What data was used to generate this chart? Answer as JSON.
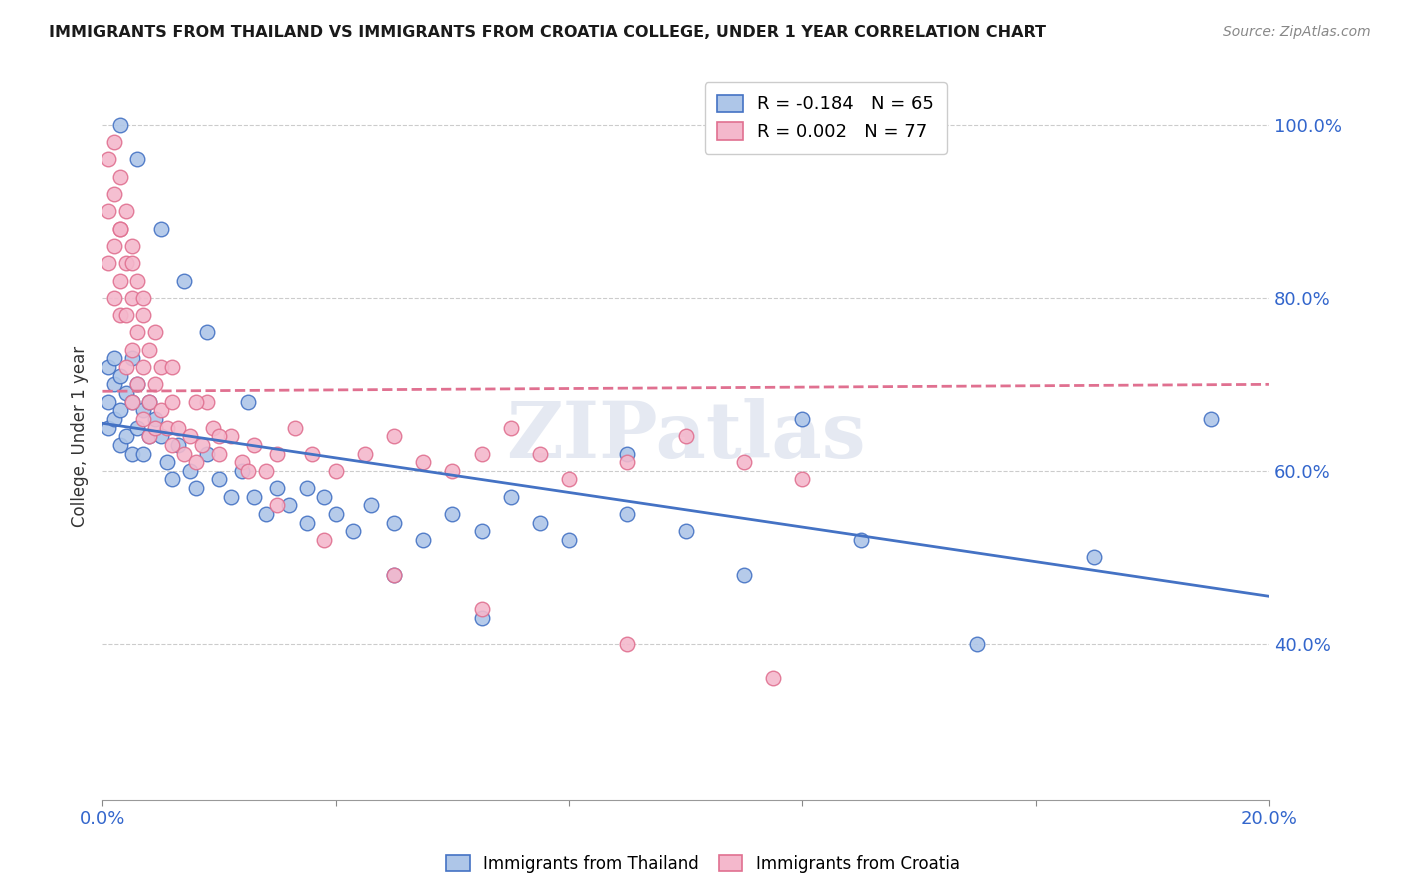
{
  "title": "IMMIGRANTS FROM THAILAND VS IMMIGRANTS FROM CROATIA COLLEGE, UNDER 1 YEAR CORRELATION CHART",
  "source": "Source: ZipAtlas.com",
  "ylabel": "College, Under 1 year",
  "xlim": [
    0.0,
    0.2
  ],
  "ylim": [
    0.22,
    1.06
  ],
  "x_ticks": [
    0.0,
    0.04,
    0.08,
    0.12,
    0.16,
    0.2
  ],
  "x_tick_labels": [
    "0.0%",
    "",
    "",
    "",
    "",
    "20.0%"
  ],
  "y_ticks": [
    0.4,
    0.6,
    0.8,
    1.0
  ],
  "y_tick_labels": [
    "40.0%",
    "60.0%",
    "80.0%",
    "100.0%"
  ],
  "legend_entry_1": "R = -0.184   N = 65",
  "legend_entry_2": "R = 0.002   N = 77",
  "thailand_color": "#aec6e8",
  "thailand_edge_color": "#4472c4",
  "croatia_color": "#f4b8cc",
  "croatia_edge_color": "#e07090",
  "thailand_line_color": "#4472c4",
  "croatia_line_color": "#e07090",
  "watermark": "ZIPatlas",
  "bottom_legend_1": "Immigrants from Thailand",
  "bottom_legend_2": "Immigrants from Croatia",
  "thailand_x": [
    0.001,
    0.001,
    0.001,
    0.002,
    0.002,
    0.002,
    0.003,
    0.003,
    0.003,
    0.004,
    0.004,
    0.005,
    0.005,
    0.005,
    0.006,
    0.006,
    0.007,
    0.007,
    0.008,
    0.008,
    0.009,
    0.01,
    0.011,
    0.012,
    0.013,
    0.015,
    0.016,
    0.018,
    0.02,
    0.022,
    0.024,
    0.026,
    0.028,
    0.03,
    0.032,
    0.035,
    0.038,
    0.04,
    0.043,
    0.046,
    0.05,
    0.055,
    0.06,
    0.065,
    0.07,
    0.075,
    0.08,
    0.09,
    0.1,
    0.11,
    0.12,
    0.13,
    0.15,
    0.17,
    0.19,
    0.003,
    0.006,
    0.01,
    0.014,
    0.018,
    0.025,
    0.035,
    0.05,
    0.065,
    0.09
  ],
  "thailand_y": [
    0.72,
    0.68,
    0.65,
    0.73,
    0.7,
    0.66,
    0.71,
    0.67,
    0.63,
    0.69,
    0.64,
    0.73,
    0.68,
    0.62,
    0.7,
    0.65,
    0.67,
    0.62,
    0.68,
    0.64,
    0.66,
    0.64,
    0.61,
    0.59,
    0.63,
    0.6,
    0.58,
    0.62,
    0.59,
    0.57,
    0.6,
    0.57,
    0.55,
    0.58,
    0.56,
    0.54,
    0.57,
    0.55,
    0.53,
    0.56,
    0.54,
    0.52,
    0.55,
    0.53,
    0.57,
    0.54,
    0.52,
    0.55,
    0.53,
    0.48,
    0.66,
    0.52,
    0.4,
    0.5,
    0.66,
    1.0,
    0.96,
    0.88,
    0.82,
    0.76,
    0.68,
    0.58,
    0.48,
    0.43,
    0.62
  ],
  "croatia_x": [
    0.001,
    0.001,
    0.001,
    0.002,
    0.002,
    0.002,
    0.002,
    0.003,
    0.003,
    0.003,
    0.003,
    0.004,
    0.004,
    0.004,
    0.004,
    0.005,
    0.005,
    0.005,
    0.005,
    0.006,
    0.006,
    0.006,
    0.007,
    0.007,
    0.007,
    0.008,
    0.008,
    0.008,
    0.009,
    0.009,
    0.01,
    0.01,
    0.011,
    0.012,
    0.012,
    0.013,
    0.014,
    0.015,
    0.016,
    0.017,
    0.018,
    0.019,
    0.02,
    0.022,
    0.024,
    0.026,
    0.028,
    0.03,
    0.033,
    0.036,
    0.04,
    0.045,
    0.05,
    0.055,
    0.06,
    0.065,
    0.07,
    0.075,
    0.08,
    0.09,
    0.1,
    0.11,
    0.12,
    0.003,
    0.005,
    0.007,
    0.009,
    0.012,
    0.016,
    0.02,
    0.025,
    0.03,
    0.038,
    0.05,
    0.065,
    0.09,
    0.115
  ],
  "croatia_y": [
    0.96,
    0.9,
    0.84,
    0.98,
    0.92,
    0.86,
    0.8,
    0.94,
    0.88,
    0.82,
    0.78,
    0.9,
    0.84,
    0.78,
    0.72,
    0.86,
    0.8,
    0.74,
    0.68,
    0.82,
    0.76,
    0.7,
    0.78,
    0.72,
    0.66,
    0.74,
    0.68,
    0.64,
    0.7,
    0.65,
    0.72,
    0.67,
    0.65,
    0.68,
    0.63,
    0.65,
    0.62,
    0.64,
    0.61,
    0.63,
    0.68,
    0.65,
    0.62,
    0.64,
    0.61,
    0.63,
    0.6,
    0.62,
    0.65,
    0.62,
    0.6,
    0.62,
    0.64,
    0.61,
    0.6,
    0.62,
    0.65,
    0.62,
    0.59,
    0.61,
    0.64,
    0.61,
    0.59,
    0.88,
    0.84,
    0.8,
    0.76,
    0.72,
    0.68,
    0.64,
    0.6,
    0.56,
    0.52,
    0.48,
    0.44,
    0.4,
    0.36
  ]
}
